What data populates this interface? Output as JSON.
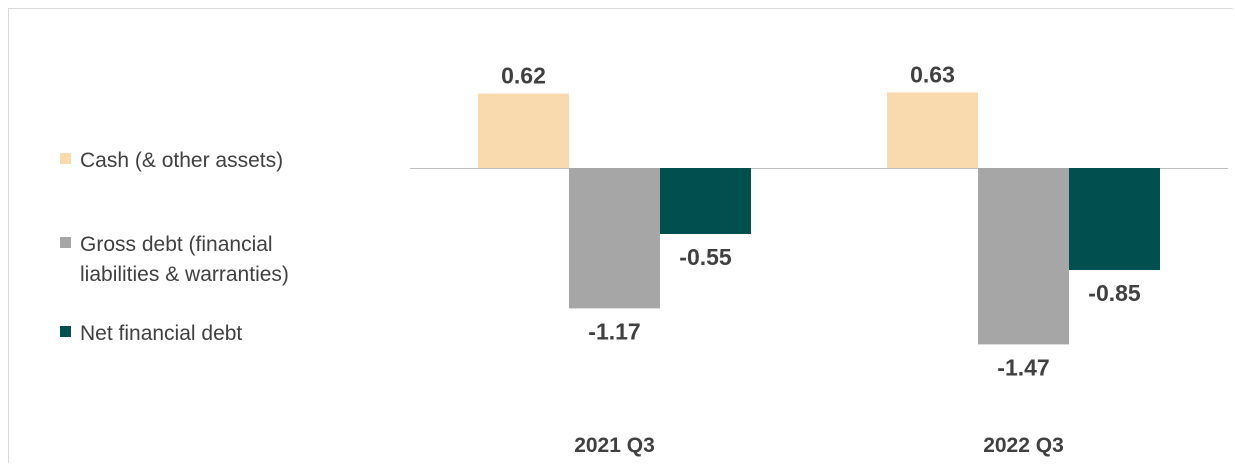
{
  "chart_data": {
    "type": "bar",
    "categories": [
      "2021 Q3",
      "2022 Q3"
    ],
    "series": [
      {
        "name": "Cash (& other assets)",
        "color": "#f9d9ae",
        "values": [
          0.62,
          0.63
        ]
      },
      {
        "name": "Gross debt (financial\nliabilities & warranties)",
        "color": "#a6a6a6",
        "values": [
          -1.17,
          -1.47
        ]
      },
      {
        "name": "Net financial debt",
        "color": "#024f4f",
        "values": [
          -0.55,
          -0.85
        ]
      }
    ],
    "data_labels": [
      [
        "0.62",
        "-1.17",
        "-0.55"
      ],
      [
        "0.63",
        "-1.47",
        "-0.85"
      ]
    ],
    "legend_position": "left",
    "grid": false
  }
}
